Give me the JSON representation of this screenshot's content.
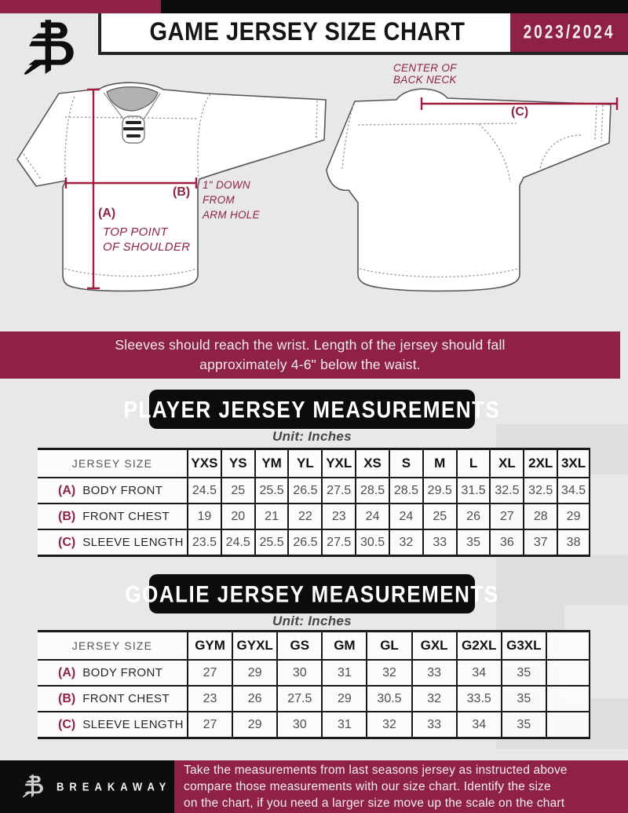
{
  "colors": {
    "maroon": "#8e2144",
    "measure_line": "#a31b3e",
    "black": "#0d0d0d",
    "page_bg": "#e8e7e9",
    "table_line": "#1a1a1a"
  },
  "header": {
    "title": "GAME JERSEY SIZE CHART",
    "season": "2023/2024",
    "logo_icon": "breakaway-b-monogram"
  },
  "watermark_letter": "B",
  "diagram": {
    "front": {
      "a_label": "(A)",
      "a_note_lines": [
        "TOP POINT",
        "OF SHOULDER"
      ],
      "b_label": "(B)",
      "b_note_lines": [
        "1\" DOWN",
        "FROM",
        "ARM HOLE"
      ]
    },
    "back": {
      "c_label": "(C)",
      "c_note_lines": [
        "CENTER OF",
        "BACK NECK"
      ]
    }
  },
  "banner": {
    "lines": [
      "Sleeves should reach the wrist. Length of the jersey should fall",
      "approximately 4-6\" below the waist."
    ]
  },
  "player_section": {
    "title": "PLAYER JERSEY MEASUREMENTS",
    "unit": "Unit: Inches",
    "table": {
      "label_header": "JERSEY SIZE",
      "columns": [
        "YXS",
        "YS",
        "YM",
        "YL",
        "YXL",
        "XS",
        "S",
        "M",
        "L",
        "XL",
        "2XL",
        "3XL"
      ],
      "rows": [
        {
          "key": "(A)",
          "label": "BODY FRONT",
          "values": [
            "24.5",
            "25",
            "25.5",
            "26.5",
            "27.5",
            "28.5",
            "28.5",
            "29.5",
            "31.5",
            "32.5",
            "32.5",
            "34.5"
          ]
        },
        {
          "key": "(B)",
          "label": "FRONT CHEST",
          "values": [
            "19",
            "20",
            "21",
            "22",
            "23",
            "24",
            "24",
            "25",
            "26",
            "27",
            "28",
            "29"
          ]
        },
        {
          "key": "(C)",
          "label": "SLEEVE LENGTH",
          "values": [
            "23.5",
            "24.5",
            "25.5",
            "26.5",
            "27.5",
            "30.5",
            "32",
            "33",
            "35",
            "36",
            "37",
            "38"
          ]
        }
      ]
    }
  },
  "goalie_section": {
    "title": "GOALIE JERSEY MEASUREMENTS",
    "unit": "Unit: Inches",
    "table": {
      "label_header": "JERSEY SIZE",
      "columns": [
        "GYM",
        "GYXL",
        "GS",
        "GM",
        "GL",
        "GXL",
        "G2XL",
        "G3XL",
        ""
      ],
      "rows": [
        {
          "key": "(A)",
          "label": "BODY FRONT",
          "values": [
            "27",
            "29",
            "30",
            "31",
            "32",
            "33",
            "34",
            "35",
            ""
          ]
        },
        {
          "key": "(B)",
          "label": "FRONT CHEST",
          "values": [
            "23",
            "26",
            "27.5",
            "29",
            "30.5",
            "32",
            "33.5",
            "35",
            ""
          ]
        },
        {
          "key": "(C)",
          "label": "SLEEVE LENGTH",
          "values": [
            "27",
            "29",
            "30",
            "31",
            "32",
            "33",
            "34",
            "35",
            ""
          ]
        }
      ]
    }
  },
  "footer": {
    "brand": "BREAKAWAY",
    "logo_icon": "breakaway-b-monogram",
    "lines": [
      "Take the measurements from last seasons jersey as instructed above",
      "compare those measurements  with our size chart. Identify the size",
      "on the chart, if you need a larger size move up the scale on the chart"
    ]
  }
}
